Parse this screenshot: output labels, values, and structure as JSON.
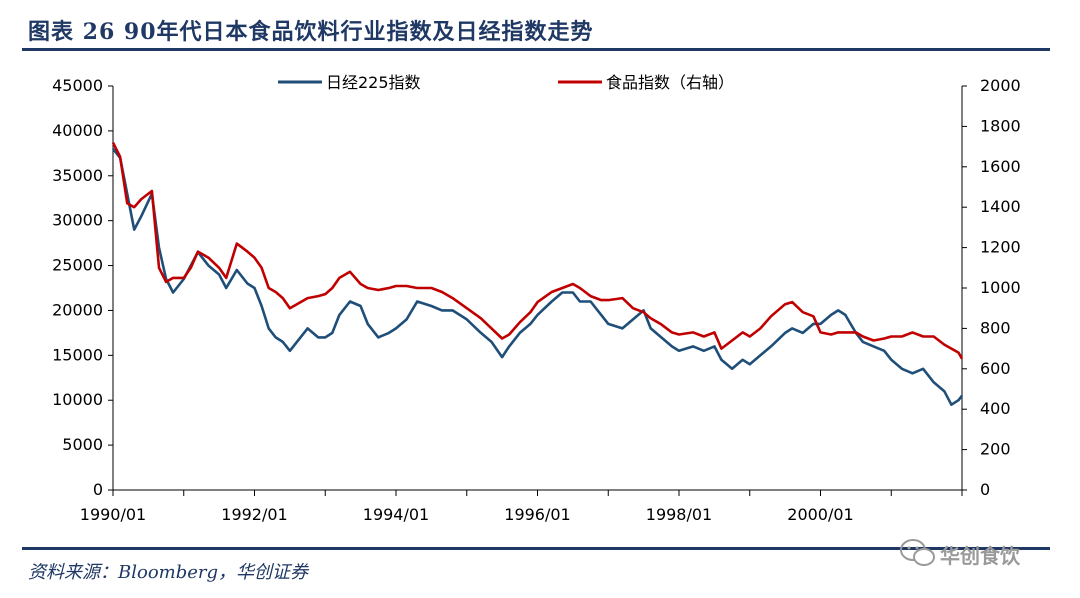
{
  "title": "图表 26   90年代日本食品饮料行业指数及日经指数走势",
  "source": "资料来源：Bloomberg，华创证券",
  "watermark": "华创食饮",
  "chart_data": {
    "type": "line",
    "x_ticks": [
      "1990/01",
      "1992/01",
      "1994/01",
      "1996/01",
      "1998/01",
      "2000/01"
    ],
    "x_range": [
      1990.0,
      2002.0
    ],
    "y_left": {
      "ticks": [
        "0",
        "5000",
        "10000",
        "15000",
        "20000",
        "25000",
        "30000",
        "35000",
        "40000",
        "45000"
      ],
      "ylim": [
        0,
        45000
      ]
    },
    "y_right": {
      "ticks": [
        "0",
        "200",
        "400",
        "600",
        "800",
        "1000",
        "1200",
        "1400",
        "1600",
        "1800",
        "2000"
      ],
      "ylim": [
        0,
        2000
      ]
    },
    "legend": [
      "日经225指数",
      "食品指数（右轴）"
    ],
    "colors": {
      "nikkei": "#1f4e79",
      "food": "#c00000"
    },
    "series": [
      {
        "name": "日经225指数",
        "axis": "left",
        "x": [
          1990.0,
          1990.1,
          1990.2,
          1990.3,
          1990.4,
          1990.55,
          1990.65,
          1990.75,
          1990.85,
          1991.0,
          1991.1,
          1991.2,
          1991.35,
          1991.5,
          1991.6,
          1991.75,
          1991.9,
          1992.0,
          1992.1,
          1992.2,
          1992.3,
          1992.4,
          1992.5,
          1992.6,
          1992.75,
          1992.9,
          1993.0,
          1993.1,
          1993.2,
          1993.35,
          1993.5,
          1993.6,
          1993.75,
          1993.9,
          1994.0,
          1994.15,
          1994.3,
          1994.5,
          1994.65,
          1994.8,
          1995.0,
          1995.2,
          1995.35,
          1995.5,
          1995.6,
          1995.75,
          1995.9,
          1996.0,
          1996.2,
          1996.35,
          1996.5,
          1996.6,
          1996.75,
          1996.9,
          1997.0,
          1997.2,
          1997.35,
          1997.5,
          1997.6,
          1997.75,
          1997.9,
          1998.0,
          1998.2,
          1998.35,
          1998.5,
          1998.6,
          1998.75,
          1998.9,
          1999.0,
          1999.15,
          1999.3,
          1999.5,
          1999.6,
          1999.75,
          1999.9,
          2000.0,
          2000.15,
          2000.25,
          2000.35,
          2000.5,
          2000.6,
          2000.75,
          2000.9,
          2001.0,
          2001.15,
          2001.3,
          2001.45,
          2001.6,
          2001.75,
          2001.85,
          2001.95,
          2002.0
        ],
        "values": [
          38000,
          37000,
          33000,
          29000,
          30500,
          33000,
          27000,
          23500,
          22000,
          23500,
          25000,
          26500,
          25000,
          24000,
          22500,
          24500,
          23000,
          22500,
          20500,
          18000,
          17000,
          16500,
          15500,
          16500,
          18000,
          17000,
          17000,
          17500,
          19500,
          21000,
          20500,
          18500,
          17000,
          17500,
          18000,
          19000,
          21000,
          20500,
          20000,
          20000,
          19000,
          17500,
          16500,
          14800,
          16000,
          17500,
          18500,
          19500,
          21000,
          22000,
          22000,
          21000,
          21000,
          19500,
          18500,
          18000,
          19000,
          20000,
          18000,
          17000,
          16000,
          15500,
          16000,
          15500,
          16000,
          14500,
          13500,
          14500,
          14000,
          15000,
          16000,
          17500,
          18000,
          17500,
          18500,
          18500,
          19500,
          20000,
          19500,
          17500,
          16500,
          16000,
          15500,
          14500,
          13500,
          13000,
          13500,
          12000,
          11000,
          9500,
          10000,
          10500
        ]
      },
      {
        "name": "食品指数（右轴）",
        "axis": "right",
        "x": [
          1990.0,
          1990.1,
          1990.2,
          1990.3,
          1990.4,
          1990.55,
          1990.65,
          1990.75,
          1990.85,
          1991.0,
          1991.1,
          1991.2,
          1991.35,
          1991.5,
          1991.6,
          1991.75,
          1991.9,
          1992.0,
          1992.1,
          1992.2,
          1992.3,
          1992.4,
          1992.5,
          1992.6,
          1992.75,
          1992.9,
          1993.0,
          1993.1,
          1993.2,
          1993.35,
          1993.5,
          1993.6,
          1993.75,
          1993.9,
          1994.0,
          1994.15,
          1994.3,
          1994.5,
          1994.65,
          1994.8,
          1995.0,
          1995.2,
          1995.35,
          1995.5,
          1995.6,
          1995.75,
          1995.9,
          1996.0,
          1996.2,
          1996.35,
          1996.5,
          1996.6,
          1996.75,
          1996.9,
          1997.0,
          1997.2,
          1997.35,
          1997.5,
          1997.6,
          1997.75,
          1997.9,
          1998.0,
          1998.2,
          1998.35,
          1998.5,
          1998.6,
          1998.75,
          1998.9,
          1999.0,
          1999.15,
          1999.3,
          1999.5,
          1999.6,
          1999.75,
          1999.9,
          2000.0,
          2000.15,
          2000.25,
          2000.35,
          2000.5,
          2000.6,
          2000.75,
          2000.9,
          2001.0,
          2001.15,
          2001.3,
          2001.45,
          2001.6,
          2001.75,
          2001.85,
          2001.95,
          2002.0
        ],
        "values": [
          1720,
          1650,
          1420,
          1400,
          1440,
          1480,
          1100,
          1030,
          1050,
          1050,
          1100,
          1180,
          1150,
          1100,
          1050,
          1220,
          1180,
          1150,
          1100,
          1000,
          980,
          950,
          900,
          920,
          950,
          960,
          970,
          1000,
          1050,
          1080,
          1020,
          1000,
          990,
          1000,
          1010,
          1010,
          1000,
          1000,
          980,
          950,
          900,
          850,
          800,
          750,
          770,
          830,
          880,
          930,
          980,
          1000,
          1020,
          1000,
          960,
          940,
          940,
          950,
          900,
          880,
          850,
          820,
          780,
          770,
          780,
          760,
          780,
          700,
          740,
          780,
          760,
          800,
          860,
          920,
          930,
          880,
          860,
          780,
          770,
          780,
          780,
          780,
          760,
          740,
          750,
          760,
          760,
          780,
          760,
          760,
          720,
          700,
          680,
          650
        ]
      }
    ]
  }
}
